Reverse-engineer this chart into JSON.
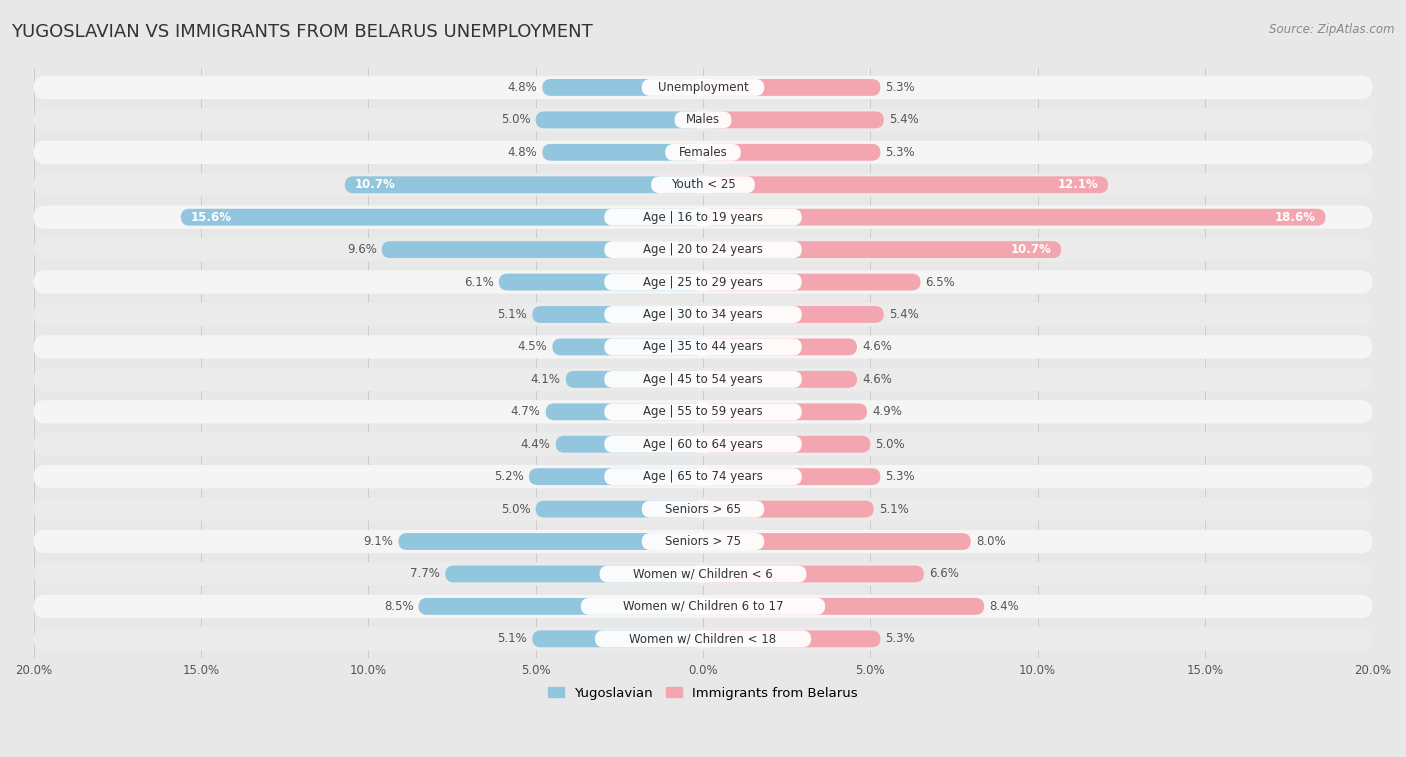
{
  "title": "YUGOSLAVIAN VS IMMIGRANTS FROM BELARUS UNEMPLOYMENT",
  "source": "Source: ZipAtlas.com",
  "categories": [
    "Unemployment",
    "Males",
    "Females",
    "Youth < 25",
    "Age | 16 to 19 years",
    "Age | 20 to 24 years",
    "Age | 25 to 29 years",
    "Age | 30 to 34 years",
    "Age | 35 to 44 years",
    "Age | 45 to 54 years",
    "Age | 55 to 59 years",
    "Age | 60 to 64 years",
    "Age | 65 to 74 years",
    "Seniors > 65",
    "Seniors > 75",
    "Women w/ Children < 6",
    "Women w/ Children 6 to 17",
    "Women w/ Children < 18"
  ],
  "yugoslavian": [
    4.8,
    5.0,
    4.8,
    10.7,
    15.6,
    9.6,
    6.1,
    5.1,
    4.5,
    4.1,
    4.7,
    4.4,
    5.2,
    5.0,
    9.1,
    7.7,
    8.5,
    5.1
  ],
  "belarus": [
    5.3,
    5.4,
    5.3,
    12.1,
    18.6,
    10.7,
    6.5,
    5.4,
    4.6,
    4.6,
    4.9,
    5.0,
    5.3,
    5.1,
    8.0,
    6.6,
    8.4,
    5.3
  ],
  "yugoslav_color": "#92c5de",
  "belarus_color": "#f4a6b0",
  "yugoslav_highlight_color": "#5aace3",
  "belarus_highlight_color": "#f768a1",
  "background_color": "#e8e8e8",
  "row_bg_color": "#ffffff",
  "row_bg_dark": "#d8d8d8",
  "max_value": 20.0,
  "title_fontsize": 13,
  "label_fontsize": 8.5,
  "value_fontsize": 8.5,
  "tick_fontsize": 8.5
}
